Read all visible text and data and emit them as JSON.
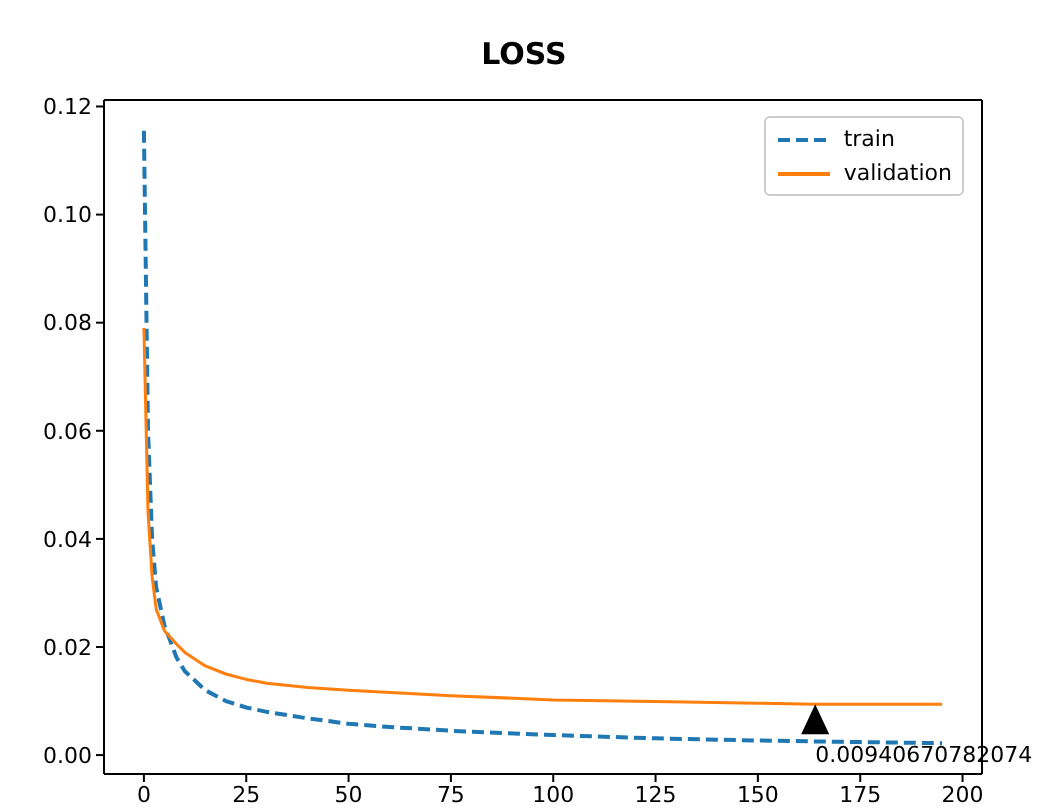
{
  "chart_data": {
    "type": "line",
    "title": "LOSS",
    "series": [
      {
        "name": "train",
        "color": "#1f77b4",
        "line_style": "dashed",
        "x": [
          0,
          1,
          2,
          3,
          5,
          8,
          10,
          15,
          20,
          25,
          30,
          40,
          50,
          60,
          75,
          100,
          125,
          150,
          175,
          195
        ],
        "values": [
          0.1155,
          0.06,
          0.04,
          0.031,
          0.024,
          0.018,
          0.0155,
          0.012,
          0.01,
          0.0088,
          0.008,
          0.0068,
          0.0058,
          0.0052,
          0.0045,
          0.0037,
          0.0031,
          0.0027,
          0.0024,
          0.0022
        ]
      },
      {
        "name": "validation",
        "color": "#ff7f0e",
        "line_style": "solid",
        "x": [
          0,
          1,
          2,
          3,
          5,
          8,
          10,
          15,
          20,
          25,
          30,
          40,
          50,
          75,
          100,
          125,
          150,
          164,
          195
        ],
        "values": [
          0.079,
          0.045,
          0.033,
          0.027,
          0.023,
          0.0205,
          0.019,
          0.0165,
          0.015,
          0.014,
          0.0133,
          0.0125,
          0.012,
          0.011,
          0.0102,
          0.0099,
          0.0096,
          0.0094,
          0.0094
        ]
      }
    ],
    "xlim": [
      -9.75,
      204.75
    ],
    "xticks": [
      0,
      25,
      50,
      75,
      100,
      125,
      150,
      175,
      200
    ],
    "ylim": [
      -0.0035,
      0.1212
    ],
    "yticks": [
      {
        "value": 0,
        "label": "0.00"
      },
      {
        "value": 0.02,
        "label": "0.02"
      },
      {
        "value": 0.04,
        "label": "0.04"
      },
      {
        "value": 0.06,
        "label": "0.06"
      },
      {
        "value": 0.08,
        "label": "0.08"
      },
      {
        "value": 0.1,
        "label": "0.10"
      },
      {
        "value": 0.12,
        "label": "0.12"
      }
    ],
    "annotations": [
      {
        "text": "0.00940670782074",
        "x": 164,
        "y": 0.0094
      }
    ],
    "legend": "top right",
    "marker": "none"
  }
}
